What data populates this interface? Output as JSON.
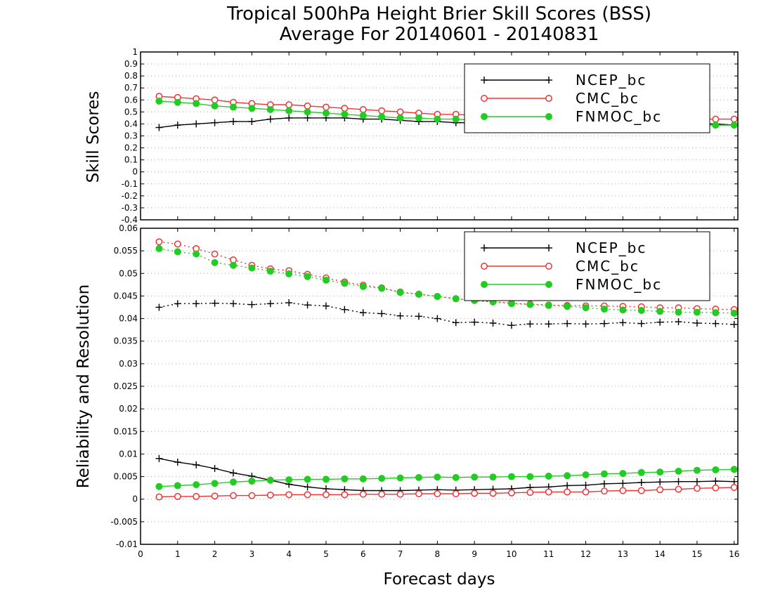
{
  "title": {
    "line1": "Tropical 500hPa Height Brier Skill Scores (BSS)",
    "line2": "Average For 20140601 - 20140831"
  },
  "colors": {
    "NCEP_bc": "#000000",
    "CMC_bc": "#ee3333",
    "FNMOC_bc": "#22cc22",
    "grid": "#aaaaaa"
  },
  "chart_data": [
    {
      "type": "line",
      "ylabel": "Skill Scores",
      "xlabel": "",
      "xlim": [
        0,
        16.1
      ],
      "ylim": [
        -0.4,
        1
      ],
      "yticks": [
        "-0.4",
        "-0.3",
        "-0.2",
        "-0.1",
        "0",
        "0.1",
        "0.2",
        "0.3",
        "0.4",
        "0.5",
        "0.6",
        "0.7",
        "0.8",
        "0.9",
        "1"
      ],
      "grid": "dotted horizontal",
      "legend_position": "top-right",
      "x": [
        0.5,
        1,
        1.5,
        2,
        2.5,
        3,
        3.5,
        4,
        4.5,
        5,
        5.5,
        6,
        6.5,
        7,
        7.5,
        8,
        8.5,
        9,
        9.5,
        10,
        10.5,
        11,
        11.5,
        12,
        12.5,
        13,
        13.5,
        14,
        14.5,
        15,
        15.5,
        16
      ],
      "series": [
        {
          "name": "NCEP_bc",
          "marker": "plus",
          "style": "solid",
          "values": [
            0.37,
            0.39,
            0.4,
            0.41,
            0.42,
            0.42,
            0.44,
            0.45,
            0.45,
            0.45,
            0.45,
            0.44,
            0.44,
            0.43,
            0.42,
            0.42,
            0.41,
            0.41,
            0.41,
            0.4,
            0.4,
            0.4,
            0.4,
            0.4,
            0.4,
            0.4,
            0.4,
            0.4,
            0.4,
            0.4,
            0.4,
            0.39
          ]
        },
        {
          "name": "CMC_bc",
          "marker": "open-circle",
          "style": "solid",
          "values": [
            0.63,
            0.62,
            0.61,
            0.6,
            0.58,
            0.57,
            0.56,
            0.56,
            0.55,
            0.54,
            0.53,
            0.52,
            0.51,
            0.5,
            0.49,
            0.48,
            0.48,
            0.47,
            0.47,
            0.46,
            0.46,
            0.46,
            0.45,
            0.45,
            0.45,
            0.45,
            0.45,
            0.45,
            0.44,
            0.44,
            0.44,
            0.44
          ]
        },
        {
          "name": "FNMOC_bc",
          "marker": "filled-circle",
          "style": "solid",
          "values": [
            0.59,
            0.58,
            0.57,
            0.55,
            0.54,
            0.53,
            0.52,
            0.51,
            0.5,
            0.49,
            0.48,
            0.47,
            0.46,
            0.45,
            0.45,
            0.44,
            0.44,
            0.43,
            0.43,
            0.42,
            0.42,
            0.41,
            0.41,
            0.41,
            0.4,
            0.4,
            0.4,
            0.4,
            0.39,
            0.39,
            0.39,
            0.39
          ]
        }
      ]
    },
    {
      "type": "line",
      "ylabel": "Reliability and Resolution",
      "xlabel": "Forecast days",
      "xlim": [
        0,
        16.1
      ],
      "ylim": [
        -0.01,
        0.06
      ],
      "xticks": [
        "0",
        "1",
        "2",
        "3",
        "4",
        "5",
        "6",
        "7",
        "8",
        "9",
        "10",
        "11",
        "12",
        "13",
        "14",
        "15",
        "16"
      ],
      "yticks": [
        "-0.01",
        "-0.005",
        "0",
        "0.005",
        "0.01",
        "0.015",
        "0.02",
        "0.025",
        "0.03",
        "0.035",
        "0.04",
        "0.045",
        "0.05",
        "0.055",
        "0.06"
      ],
      "grid": "dotted horizontal",
      "legend_position": "top-right",
      "x": [
        0.5,
        1,
        1.5,
        2,
        2.5,
        3,
        3.5,
        4,
        4.5,
        5,
        5.5,
        6,
        6.5,
        7,
        7.5,
        8,
        8.5,
        9,
        9.5,
        10,
        10.5,
        11,
        11.5,
        12,
        12.5,
        13,
        13.5,
        14,
        14.5,
        15,
        15.5,
        16
      ],
      "series": [
        {
          "name": "NCEP_bc",
          "group": "resolution",
          "marker": "plus",
          "style": "dotted",
          "values": [
            0.0425,
            0.0433,
            0.0433,
            0.0434,
            0.0433,
            0.0431,
            0.0433,
            0.0435,
            0.043,
            0.0428,
            0.042,
            0.0413,
            0.0411,
            0.0406,
            0.0405,
            0.04,
            0.0391,
            0.0392,
            0.039,
            0.0385,
            0.0388,
            0.0388,
            0.0389,
            0.0388,
            0.0389,
            0.0391,
            0.0389,
            0.0392,
            0.0393,
            0.039,
            0.0389,
            0.0387
          ]
        },
        {
          "name": "CMC_bc",
          "group": "resolution",
          "marker": "open-circle",
          "style": "dotted",
          "values": [
            0.057,
            0.0565,
            0.0555,
            0.0543,
            0.053,
            0.0518,
            0.051,
            0.0506,
            0.0498,
            0.049,
            0.0481,
            0.0474,
            0.0468,
            0.0459,
            0.0454,
            0.0449,
            0.0444,
            0.044,
            0.0437,
            0.0434,
            0.0432,
            0.043,
            0.0429,
            0.0428,
            0.0428,
            0.0427,
            0.0426,
            0.0424,
            0.0424,
            0.0422,
            0.0421,
            0.042
          ]
        },
        {
          "name": "FNMOC_bc",
          "group": "resolution",
          "marker": "filled-circle",
          "style": "dotted",
          "values": [
            0.0555,
            0.0548,
            0.0543,
            0.0524,
            0.0518,
            0.0512,
            0.0505,
            0.0499,
            0.0493,
            0.0485,
            0.0478,
            0.0471,
            0.0467,
            0.0458,
            0.0454,
            0.0449,
            0.0444,
            0.044,
            0.0437,
            0.0433,
            0.0431,
            0.0429,
            0.0427,
            0.0424,
            0.0421,
            0.0419,
            0.0418,
            0.0416,
            0.0414,
            0.0414,
            0.0413,
            0.0412
          ]
        },
        {
          "name": "NCEP_bc",
          "group": "reliability",
          "marker": "plus",
          "style": "solid",
          "values": [
            0.009,
            0.0082,
            0.0076,
            0.0068,
            0.0058,
            0.0051,
            0.0042,
            0.0033,
            0.0027,
            0.0023,
            0.0021,
            0.0019,
            0.0019,
            0.0019,
            0.002,
            0.0021,
            0.002,
            0.0021,
            0.0022,
            0.0023,
            0.0026,
            0.0027,
            0.003,
            0.0031,
            0.0034,
            0.0035,
            0.0037,
            0.0038,
            0.0039,
            0.0039,
            0.004,
            0.0039
          ]
        },
        {
          "name": "CMC_bc",
          "group": "reliability",
          "marker": "open-circle",
          "style": "solid",
          "values": [
            0.0005,
            0.0006,
            0.0006,
            0.0007,
            0.0008,
            0.0008,
            0.0009,
            0.001,
            0.001,
            0.001,
            0.001,
            0.0011,
            0.0011,
            0.0011,
            0.0012,
            0.0012,
            0.0012,
            0.0013,
            0.0013,
            0.0014,
            0.0015,
            0.0016,
            0.0016,
            0.0016,
            0.0018,
            0.0019,
            0.0019,
            0.0021,
            0.0022,
            0.0024,
            0.0025,
            0.0026
          ]
        },
        {
          "name": "FNMOC_bc",
          "group": "reliability",
          "marker": "filled-circle",
          "style": "solid",
          "values": [
            0.0028,
            0.003,
            0.0032,
            0.0035,
            0.0038,
            0.004,
            0.0042,
            0.0043,
            0.0044,
            0.0044,
            0.0045,
            0.0045,
            0.0046,
            0.0047,
            0.0048,
            0.0049,
            0.0048,
            0.0049,
            0.0049,
            0.005,
            0.005,
            0.0051,
            0.0052,
            0.0054,
            0.0056,
            0.0057,
            0.0059,
            0.006,
            0.0062,
            0.0064,
            0.0065,
            0.0066
          ]
        }
      ]
    }
  ],
  "legend": {
    "entries": [
      {
        "name": "NCEP_bc",
        "marker": "plus"
      },
      {
        "name": "CMC_bc",
        "marker": "open-circle"
      },
      {
        "name": "FNMOC_bc",
        "marker": "filled-circle"
      }
    ]
  }
}
